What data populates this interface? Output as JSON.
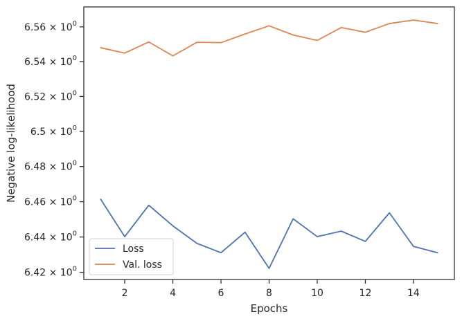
{
  "chart_data": {
    "type": "line",
    "title": "",
    "xlabel": "Epochs",
    "ylabel": "Negative log-likelihood",
    "x": [
      1,
      2,
      3,
      4,
      5,
      6,
      7,
      8,
      9,
      10,
      11,
      12,
      13,
      14,
      15
    ],
    "xlim": [
      0.3,
      15.7
    ],
    "ylim": [
      6.416,
      6.5715
    ],
    "yscale": "log",
    "x_ticks": [
      {
        "value": 2,
        "label": "2"
      },
      {
        "value": 4,
        "label": "4"
      },
      {
        "value": 6,
        "label": "6"
      },
      {
        "value": 8,
        "label": "8"
      },
      {
        "value": 10,
        "label": "10"
      },
      {
        "value": 12,
        "label": "12"
      },
      {
        "value": 14,
        "label": "14"
      }
    ],
    "y_ticks": [
      {
        "value": 6.42,
        "mantissa": "6.42",
        "base": "10",
        "exp": "0"
      },
      {
        "value": 6.44,
        "mantissa": "6.44",
        "base": "10",
        "exp": "0"
      },
      {
        "value": 6.46,
        "mantissa": "6.46",
        "base": "10",
        "exp": "0"
      },
      {
        "value": 6.48,
        "mantissa": "6.48",
        "base": "10",
        "exp": "0"
      },
      {
        "value": 6.5,
        "mantissa": "6.5",
        "base": "10",
        "exp": "0"
      },
      {
        "value": 6.52,
        "mantissa": "6.52",
        "base": "10",
        "exp": "0"
      },
      {
        "value": 6.54,
        "mantissa": "6.54",
        "base": "10",
        "exp": "0"
      },
      {
        "value": 6.56,
        "mantissa": "6.56",
        "base": "10",
        "exp": "0"
      }
    ],
    "series": [
      {
        "name": "Loss",
        "color": "#4c72b0",
        "values": [
          6.4614,
          6.4402,
          6.458,
          6.4463,
          6.4364,
          6.4311,
          6.4427,
          6.4223,
          6.4503,
          6.4402,
          6.4433,
          6.4375,
          6.4537,
          6.4347,
          6.4311
        ]
      },
      {
        "name": "Val. loss",
        "color": "#dd8452",
        "values": [
          6.548,
          6.5449,
          6.5513,
          6.5433,
          6.5511,
          6.5509,
          6.5559,
          6.5606,
          6.5553,
          6.5522,
          6.5596,
          6.5569,
          6.5619,
          6.5639,
          6.5619
        ]
      }
    ],
    "grid": false,
    "legend": {
      "position": "lower-left",
      "entries": [
        "Loss",
        "Val. loss"
      ]
    }
  }
}
